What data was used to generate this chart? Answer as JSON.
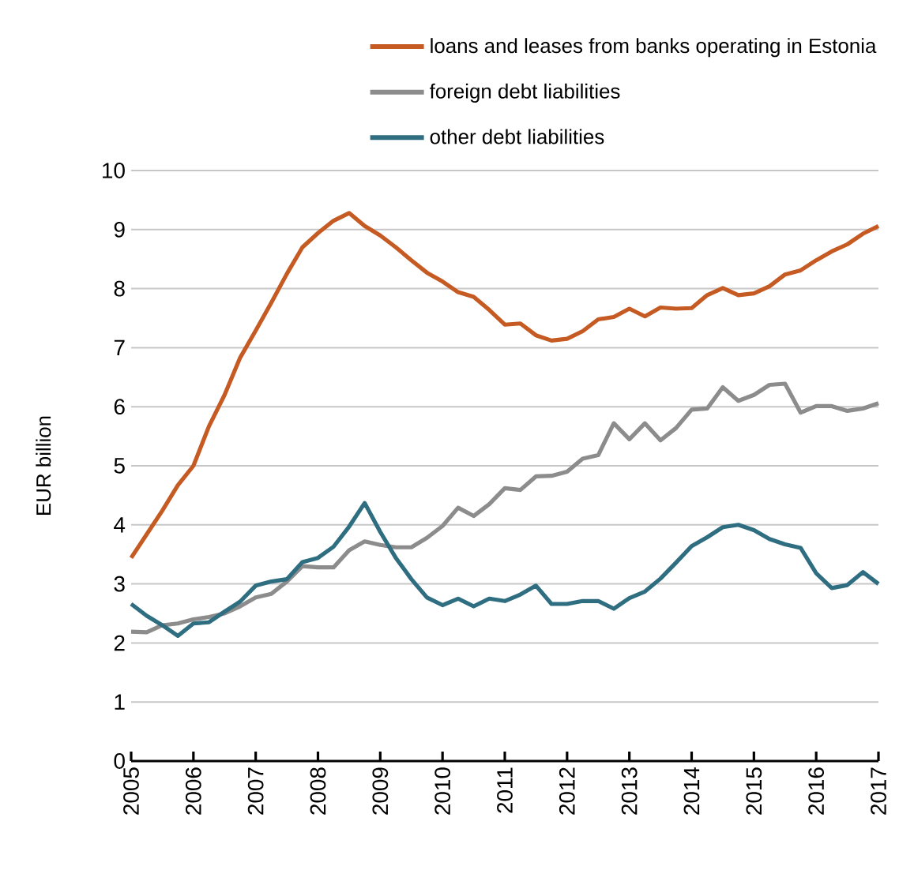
{
  "chart_data": {
    "type": "line",
    "ylabel": "EUR billion",
    "x": [
      2005,
      2005.25,
      2005.5,
      2005.75,
      2006,
      2006.25,
      2006.5,
      2006.75,
      2007,
      2007.25,
      2007.5,
      2007.75,
      2008,
      2008.25,
      2008.5,
      2008.75,
      2009,
      2009.25,
      2009.5,
      2009.75,
      2010,
      2010.25,
      2010.5,
      2010.75,
      2011,
      2011.25,
      2011.5,
      2011.75,
      2012,
      2012.25,
      2012.5,
      2012.75,
      2013,
      2013.25,
      2013.5,
      2013.75,
      2014,
      2014.25,
      2014.5,
      2014.75,
      2015,
      2015.25,
      2015.5,
      2015.75,
      2016,
      2016.25,
      2016.5,
      2016.75,
      2017
    ],
    "series": [
      {
        "name": "loans and leases from banks operating in Estonia",
        "color": "#c55a22",
        "values": [
          3.44,
          3.84,
          4.24,
          4.67,
          5.0,
          5.67,
          6.2,
          6.83,
          7.29,
          7.76,
          8.25,
          8.7,
          8.94,
          9.15,
          9.28,
          9.06,
          8.9,
          8.7,
          8.48,
          8.27,
          8.12,
          7.94,
          7.86,
          7.64,
          7.39,
          7.41,
          7.21,
          7.12,
          7.15,
          7.28,
          7.48,
          7.52,
          7.66,
          7.53,
          7.68,
          7.66,
          7.67,
          7.89,
          8.01,
          7.89,
          7.92,
          8.04,
          8.24,
          8.31,
          8.48,
          8.63,
          8.75,
          8.93,
          9.06
        ]
      },
      {
        "name": "foreign debt liabilities",
        "color": "#8c8c8c",
        "values": [
          2.19,
          2.18,
          2.3,
          2.33,
          2.4,
          2.44,
          2.5,
          2.62,
          2.77,
          2.83,
          3.04,
          3.3,
          3.28,
          3.28,
          3.57,
          3.72,
          3.66,
          3.62,
          3.62,
          3.78,
          3.98,
          4.29,
          4.15,
          4.35,
          4.62,
          4.59,
          4.82,
          4.83,
          4.9,
          5.12,
          5.18,
          5.72,
          5.45,
          5.72,
          5.43,
          5.64,
          5.95,
          5.97,
          6.33,
          6.1,
          6.2,
          6.37,
          6.39,
          5.9,
          6.01,
          6.01,
          5.93,
          5.97,
          6.06
        ]
      },
      {
        "name": "other debt liabilities",
        "color": "#2e6e80",
        "values": [
          2.66,
          2.46,
          2.3,
          2.12,
          2.33,
          2.35,
          2.53,
          2.7,
          2.97,
          3.04,
          3.08,
          3.37,
          3.44,
          3.63,
          3.97,
          4.37,
          3.88,
          3.44,
          3.08,
          2.77,
          2.64,
          2.75,
          2.62,
          2.75,
          2.71,
          2.82,
          2.97,
          2.66,
          2.66,
          2.71,
          2.71,
          2.58,
          2.76,
          2.87,
          3.09,
          3.36,
          3.64,
          3.79,
          3.96,
          4.0,
          3.91,
          3.76,
          3.67,
          3.61,
          3.18,
          2.93,
          2.98,
          3.2,
          3.0
        ]
      }
    ],
    "xlim": [
      2005,
      2017
    ],
    "xticks": [
      2005,
      2006,
      2007,
      2008,
      2009,
      2010,
      2011,
      2012,
      2013,
      2014,
      2015,
      2016,
      2017
    ],
    "ylim": [
      0,
      10
    ],
    "yticks": [
      0,
      1,
      2,
      3,
      4,
      5,
      6,
      7,
      8,
      9,
      10
    ],
    "grid": "y",
    "legend": "top"
  }
}
